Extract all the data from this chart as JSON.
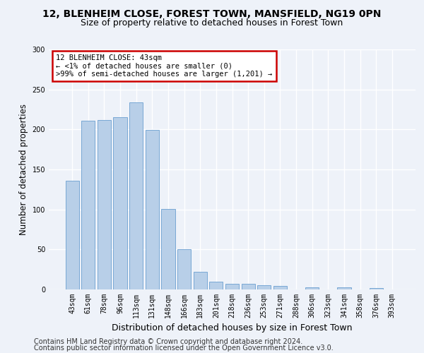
{
  "title1": "12, BLENHEIM CLOSE, FOREST TOWN, MANSFIELD, NG19 0PN",
  "title2": "Size of property relative to detached houses in Forest Town",
  "xlabel": "Distribution of detached houses by size in Forest Town",
  "ylabel": "Number of detached properties",
  "categories": [
    "43sqm",
    "61sqm",
    "78sqm",
    "96sqm",
    "113sqm",
    "131sqm",
    "148sqm",
    "166sqm",
    "183sqm",
    "201sqm",
    "218sqm",
    "236sqm",
    "253sqm",
    "271sqm",
    "288sqm",
    "306sqm",
    "323sqm",
    "341sqm",
    "358sqm",
    "376sqm",
    "393sqm"
  ],
  "values": [
    136,
    211,
    212,
    215,
    234,
    199,
    101,
    50,
    22,
    10,
    7,
    7,
    5,
    4,
    0,
    3,
    0,
    3,
    0,
    2,
    0
  ],
  "bar_color": "#b8cfe8",
  "bar_edge_color": "#6a9fd0",
  "annotation_box_text": "12 BLENHEIM CLOSE: 43sqm\n← <1% of detached houses are smaller (0)\n>99% of semi-detached houses are larger (1,201) →",
  "annotation_box_facecolor": "#ffffff",
  "annotation_box_edge_color": "#cc0000",
  "ylim": [
    0,
    300
  ],
  "yticks": [
    0,
    50,
    100,
    150,
    200,
    250,
    300
  ],
  "footer1": "Contains HM Land Registry data © Crown copyright and database right 2024.",
  "footer2": "Contains public sector information licensed under the Open Government Licence v3.0.",
  "bg_color": "#eef2f9",
  "grid_color": "#ffffff",
  "title_fontsize": 10,
  "subtitle_fontsize": 9,
  "tick_fontsize": 7,
  "ylabel_fontsize": 8.5,
  "xlabel_fontsize": 9,
  "annotation_fontsize": 7.5,
  "footer_fontsize": 7
}
